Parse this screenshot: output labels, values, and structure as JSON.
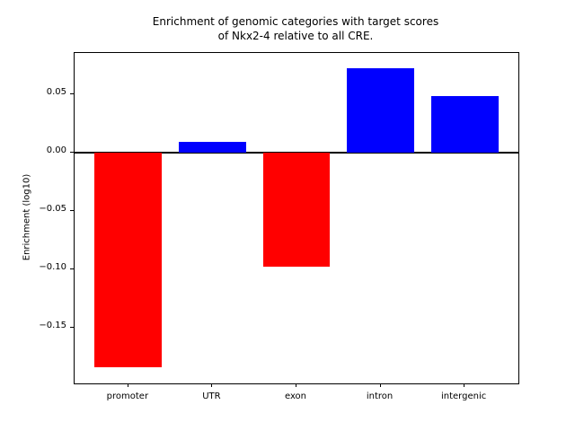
{
  "chart_data": {
    "type": "bar",
    "title": "Enrichment of genomic categories with target scores\nof Nkx2-4 relative to all CRE.",
    "title_lines": [
      "Enrichment of genomic categories with target scores",
      "of Nkx2-4 relative to all CRE."
    ],
    "xlabel": "",
    "ylabel": "Enrichment (log10)",
    "categories": [
      "promoter",
      "UTR",
      "exon",
      "intron",
      "intergenic"
    ],
    "values": [
      -0.184,
      0.009,
      -0.098,
      0.072,
      0.048
    ],
    "bar_colors": [
      "#ff0000",
      "#0000ff",
      "#ff0000",
      "#0000ff",
      "#0000ff"
    ],
    "positive_color": "#0000ff",
    "negative_color": "#ff0000",
    "bar_width": 0.8,
    "ylim": [
      -0.198,
      0.085
    ],
    "xlim": [
      -0.64,
      4.64
    ],
    "yticks": [
      {
        "value": 0.05,
        "label": "0.05"
      },
      {
        "value": 0.0,
        "label": "0.00"
      },
      {
        "value": -0.05,
        "label": "−0.05"
      },
      {
        "value": -0.1,
        "label": "−0.10"
      },
      {
        "value": -0.15,
        "label": "−0.15"
      }
    ],
    "zero_line": true,
    "grid": false,
    "legend": null,
    "axis_color": "#000000"
  }
}
